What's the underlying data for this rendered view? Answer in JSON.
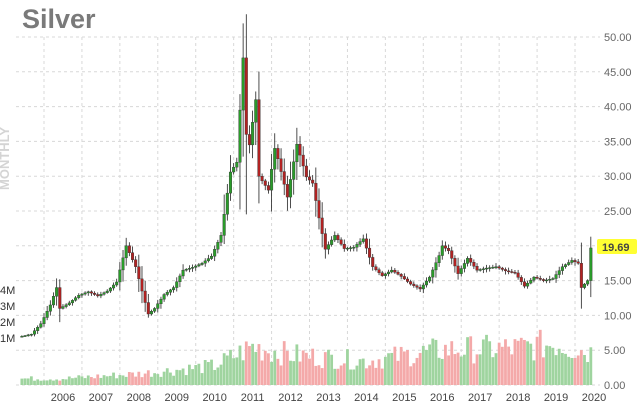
{
  "chart_data": {
    "type": "candlestick",
    "title": "Silver",
    "interval_label": "MONTHLY",
    "current_price_label": "19.69",
    "colors": {
      "up": "#2a9d2a",
      "down": "#b22222",
      "vol_up": "#9fd49f",
      "vol_down": "#f4a9a9",
      "price_tag": "#ffff33"
    },
    "x_ticks": [
      "2006",
      "2007",
      "2008",
      "2009",
      "2010",
      "2011",
      "2012",
      "2013",
      "2014",
      "2015",
      "2016",
      "2017",
      "2018",
      "2019",
      "2020"
    ],
    "y_ticks": [
      "50.00",
      "45.00",
      "40.00",
      "35.00",
      "30.00",
      "25.00",
      "20.00",
      "15.00",
      "10.00",
      "5.00",
      "0.00"
    ],
    "y_range": [
      0,
      50
    ],
    "volume_ticks": [
      "4M",
      "3M",
      "2M",
      "1M"
    ],
    "price_series": {
      "x": [
        "2005-06",
        "2005-09",
        "2005-12",
        "2006-03",
        "2006-05",
        "2006-06",
        "2006-09",
        "2006-12",
        "2007-03",
        "2007-06",
        "2007-09",
        "2007-12",
        "2008-03",
        "2008-06",
        "2008-08",
        "2008-10",
        "2008-12",
        "2009-03",
        "2009-06",
        "2009-09",
        "2009-12",
        "2010-03",
        "2010-06",
        "2010-09",
        "2010-12",
        "2011-02",
        "2011-04",
        "2011-05",
        "2011-06",
        "2011-08",
        "2011-09",
        "2011-12",
        "2012-02",
        "2012-03",
        "2012-06",
        "2012-09",
        "2012-12",
        "2013-02",
        "2013-04",
        "2013-06",
        "2013-09",
        "2013-12",
        "2014-03",
        "2014-06",
        "2014-09",
        "2014-12",
        "2015-03",
        "2015-06",
        "2015-09",
        "2015-12",
        "2016-03",
        "2016-06",
        "2016-07",
        "2016-09",
        "2016-12",
        "2017-03",
        "2017-06",
        "2017-09",
        "2017-12",
        "2018-03",
        "2018-06",
        "2018-09",
        "2018-12",
        "2019-03",
        "2019-06",
        "2019-09",
        "2019-12",
        "2020-02",
        "2020-03",
        "2020-05",
        "2020-06"
      ],
      "y": [
        7.0,
        7.3,
        8.8,
        11.5,
        14.0,
        11.0,
        11.8,
        12.9,
        13.4,
        12.8,
        13.5,
        14.8,
        20.0,
        17.0,
        13.5,
        10.2,
        11.0,
        13.0,
        14.0,
        16.5,
        16.9,
        17.5,
        18.5,
        21.5,
        30.6,
        32.0,
        47.0,
        36.0,
        34.5,
        41.0,
        30.0,
        28.0,
        34.0,
        32.5,
        27.0,
        34.6,
        29.9,
        29.0,
        24.0,
        19.5,
        21.5,
        19.6,
        19.8,
        21.0,
        17.0,
        15.7,
        16.5,
        15.6,
        14.5,
        13.8,
        15.5,
        18.6,
        20.0,
        19.3,
        16.0,
        18.2,
        16.5,
        16.8,
        17.0,
        16.4,
        16.1,
        14.2,
        15.5,
        15.0,
        15.3,
        17.0,
        17.9,
        17.5,
        14.0,
        15.0,
        19.69
      ]
    },
    "volume_series": {
      "x": [
        "2006",
        "2008",
        "2010",
        "2011",
        "2012",
        "2014",
        "2016",
        "2018",
        "2019",
        "2020"
      ],
      "y": [
        0.4,
        0.7,
        1.2,
        2.4,
        1.9,
        1.5,
        2.2,
        2.3,
        2.6,
        2.0
      ]
    }
  }
}
